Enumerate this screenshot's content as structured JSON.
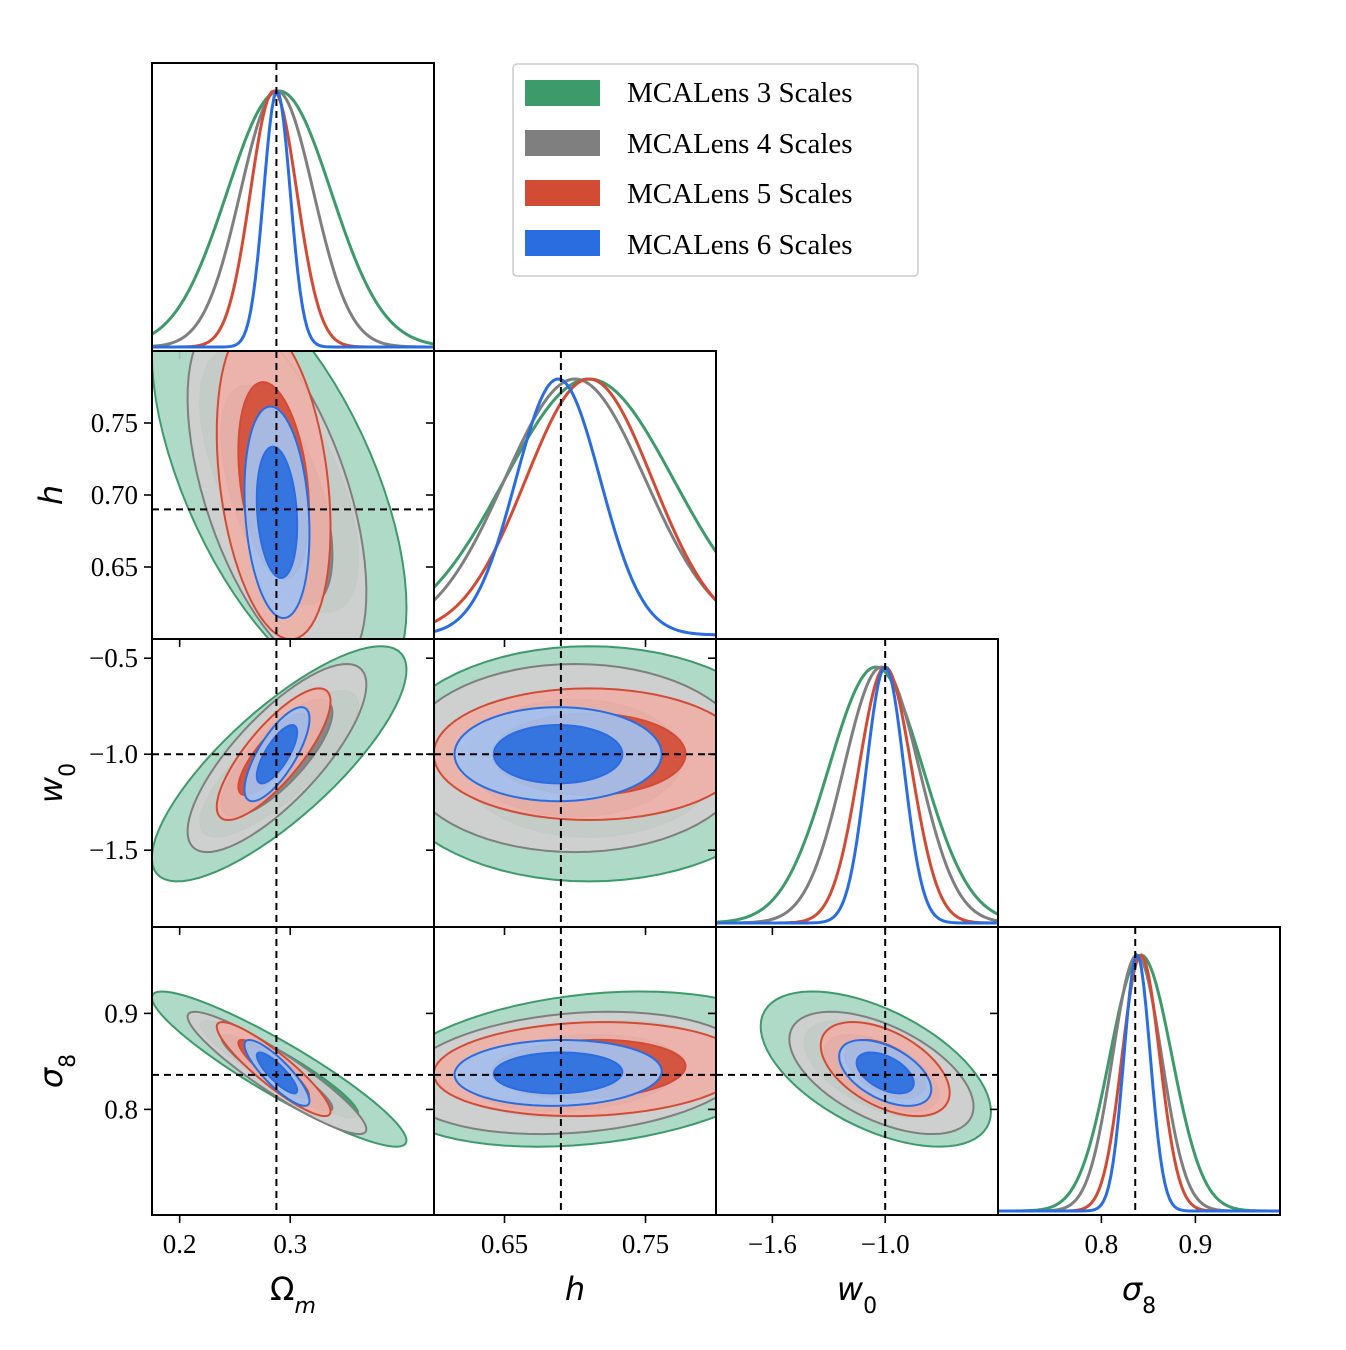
{
  "chart_data": {
    "type": "corner",
    "title": "",
    "parameters": [
      {
        "key": "om",
        "label": "Ω",
        "sub": "m",
        "range": [
          0.175,
          0.43
        ],
        "ticks": [
          0.2,
          0.3
        ],
        "tick_labels": [
          "0.2",
          "0.3"
        ],
        "truth": 0.2875
      },
      {
        "key": "h",
        "label": "h",
        "sub": "",
        "range": [
          0.6,
          0.8
        ],
        "ticks": [
          0.65,
          0.75
        ],
        "tick_labels": [
          "0.65",
          "0.75"
        ],
        "truth": 0.69
      },
      {
        "key": "w0",
        "label": "w",
        "sub": "0",
        "range": [
          -1.9,
          -0.4
        ],
        "ticks": [
          -1.6,
          -1.0
        ],
        "tick_labels": [
          "−1.6",
          "−1.0"
        ],
        "ticks_y": [
          -0.5,
          -1.0,
          -1.5
        ],
        "tick_labels_y": [
          "−0.5",
          "−1.0",
          "−1.5"
        ],
        "truth": -1.0
      },
      {
        "key": "s8",
        "label": "σ",
        "sub": "8",
        "range": [
          0.69,
          0.99
        ],
        "ticks": [
          0.8,
          0.9
        ],
        "tick_labels": [
          "0.8",
          "0.9"
        ],
        "truth": 0.836
      }
    ],
    "y_tick_overrides": {
      "h": {
        "ticks": [
          0.75,
          0.7,
          0.65
        ],
        "tick_labels": [
          "0.75",
          "0.70",
          "0.65"
        ]
      },
      "s8": {
        "ticks": [
          0.9,
          0.8
        ],
        "tick_labels": [
          "0.9",
          "0.8"
        ]
      }
    },
    "legend": {
      "placement": "top-center"
    },
    "series": [
      {
        "name": "MCALens 3 Scales",
        "color": "#3d9a6a",
        "fill_outer": "#a8d7c3",
        "fill_inner": "#3d9a6a",
        "mean": {
          "om": 0.29,
          "h": 0.71,
          "w0": -1.05,
          "s8": 0.842
        },
        "sigma": {
          "om": 0.047,
          "h": 0.06,
          "w0": 0.25,
          "s8": 0.033
        },
        "corr": {
          "om_h": -0.6,
          "om_w0": 0.8,
          "om_s8": -0.92,
          "h_w0": 0.0,
          "h_s8": 0.25,
          "w0_s8": -0.55
        }
      },
      {
        "name": "MCALens 4 Scales",
        "color": "#7f7f7f",
        "fill_outer": "#cfcfcf",
        "fill_inner": "#7f7f7f",
        "mean": {
          "om": 0.288,
          "h": 0.7,
          "w0": -1.02,
          "s8": 0.838
        },
        "sigma": {
          "om": 0.033,
          "h": 0.05,
          "w0": 0.2,
          "s8": 0.026
        },
        "corr": {
          "om_h": -0.55,
          "om_w0": 0.78,
          "om_s8": -0.92,
          "h_w0": 0.0,
          "h_s8": 0.2,
          "w0_s8": -0.55
        }
      },
      {
        "name": "MCALens 5 Scales",
        "color": "#d24b35",
        "fill_outer": "#eeb1a8",
        "fill_inner": "#d24b35",
        "mean": {
          "om": 0.285,
          "h": 0.71,
          "w0": -1.0,
          "s8": 0.842
        },
        "sigma": {
          "om": 0.021,
          "h": 0.045,
          "w0": 0.14,
          "s8": 0.02
        },
        "corr": {
          "om_h": -0.3,
          "om_w0": 0.8,
          "om_s8": -0.9,
          "h_w0": 0.0,
          "h_s8": 0.1,
          "w0_s8": -0.5
        }
      },
      {
        "name": "MCALens 6 Scales",
        "color": "#2a6de0",
        "fill_outer": "#a3c1ef",
        "fill_inner": "#2a6de0",
        "mean": {
          "om": 0.288,
          "h": 0.688,
          "w0": -1.0,
          "s8": 0.838
        },
        "sigma": {
          "om": 0.012,
          "h": 0.03,
          "w0": 0.1,
          "s8": 0.014
        },
        "corr": {
          "om_h": -0.2,
          "om_w0": 0.75,
          "om_s8": -0.85,
          "h_w0": 0.0,
          "h_s8": 0.05,
          "w0_s8": -0.5
        }
      }
    ]
  }
}
